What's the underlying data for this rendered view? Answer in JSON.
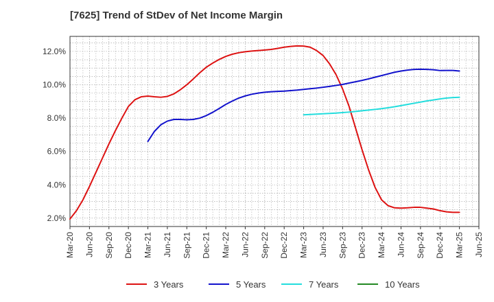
{
  "chart_data": {
    "type": "line",
    "title": "[7625]  Trend of StDev of Net Income Margin",
    "xlabel": "",
    "ylabel": "",
    "x_ticks": [
      "Mar-20",
      "Jun-20",
      "Sep-20",
      "Dec-20",
      "Mar-21",
      "Jun-21",
      "Sep-21",
      "Dec-21",
      "Mar-22",
      "Jun-22",
      "Sep-22",
      "Dec-22",
      "Mar-23",
      "Jun-23",
      "Sep-23",
      "Dec-23",
      "Mar-24",
      "Jun-24",
      "Sep-24",
      "Dec-24",
      "Mar-25",
      "Jun-25"
    ],
    "y_ticks": [
      "2.0%",
      "4.0%",
      "6.0%",
      "8.0%",
      "10.0%",
      "12.0%"
    ],
    "ylim": [
      1.5,
      12.9
    ],
    "grid": true,
    "legend_position": "bottom",
    "series": [
      {
        "name": "3 Years",
        "color": "#dd1111",
        "x": [
          "Mar-20",
          "Apr-20",
          "May-20",
          "Jun-20",
          "Jul-20",
          "Aug-20",
          "Sep-20",
          "Oct-20",
          "Nov-20",
          "Dec-20",
          "Jan-21",
          "Feb-21",
          "Mar-21",
          "Apr-21",
          "May-21",
          "Jun-21",
          "Jul-21",
          "Aug-21",
          "Sep-21",
          "Oct-21",
          "Nov-21",
          "Dec-21",
          "Jan-22",
          "Feb-22",
          "Mar-22",
          "Apr-22",
          "May-22",
          "Jun-22",
          "Jul-22",
          "Aug-22",
          "Sep-22",
          "Oct-22",
          "Nov-22",
          "Dec-22",
          "Jan-23",
          "Feb-23",
          "Mar-23",
          "Apr-23",
          "May-23",
          "Jun-23",
          "Jul-23",
          "Aug-23",
          "Sep-23",
          "Oct-23",
          "Nov-23",
          "Dec-23",
          "Jan-24",
          "Feb-24",
          "Mar-24",
          "Apr-24",
          "May-24",
          "Jun-24",
          "Jul-24",
          "Aug-24",
          "Sep-24",
          "Oct-24",
          "Nov-24",
          "Dec-24",
          "Jan-25",
          "Feb-25",
          "Mar-25"
        ],
        "values": [
          1.95,
          2.45,
          3.1,
          3.9,
          4.75,
          5.6,
          6.45,
          7.25,
          8.0,
          8.7,
          9.1,
          9.28,
          9.32,
          9.28,
          9.25,
          9.3,
          9.45,
          9.7,
          10.0,
          10.35,
          10.72,
          11.05,
          11.3,
          11.52,
          11.7,
          11.83,
          11.92,
          11.98,
          12.02,
          12.05,
          12.08,
          12.12,
          12.18,
          12.25,
          12.3,
          12.33,
          12.32,
          12.25,
          12.05,
          11.75,
          11.25,
          10.6,
          9.75,
          8.7,
          7.4,
          6.1,
          4.9,
          3.85,
          3.1,
          2.75,
          2.62,
          2.6,
          2.62,
          2.65,
          2.65,
          2.6,
          2.55,
          2.45,
          2.38,
          2.35,
          2.35
        ]
      },
      {
        "name": "5 Years",
        "color": "#1111cc",
        "x": [
          "Mar-21",
          "Apr-21",
          "May-21",
          "Jun-21",
          "Jul-21",
          "Aug-21",
          "Sep-21",
          "Oct-21",
          "Nov-21",
          "Dec-21",
          "Jan-22",
          "Feb-22",
          "Mar-22",
          "Apr-22",
          "May-22",
          "Jun-22",
          "Jul-22",
          "Aug-22",
          "Sep-22",
          "Oct-22",
          "Nov-22",
          "Dec-22",
          "Jan-23",
          "Feb-23",
          "Mar-23",
          "Apr-23",
          "May-23",
          "Jun-23",
          "Jul-23",
          "Aug-23",
          "Sep-23",
          "Oct-23",
          "Nov-23",
          "Dec-23",
          "Jan-24",
          "Feb-24",
          "Mar-24",
          "Apr-24",
          "May-24",
          "Jun-24",
          "Jul-24",
          "Aug-24",
          "Sep-24",
          "Oct-24",
          "Nov-24",
          "Dec-24",
          "Jan-25",
          "Feb-25",
          "Mar-25"
        ],
        "values": [
          6.6,
          7.2,
          7.6,
          7.82,
          7.92,
          7.92,
          7.9,
          7.92,
          8.0,
          8.15,
          8.35,
          8.58,
          8.82,
          9.02,
          9.2,
          9.33,
          9.43,
          9.5,
          9.55,
          9.58,
          9.6,
          9.62,
          9.65,
          9.68,
          9.72,
          9.76,
          9.8,
          9.85,
          9.9,
          9.96,
          10.02,
          10.1,
          10.18,
          10.26,
          10.35,
          10.45,
          10.55,
          10.65,
          10.75,
          10.82,
          10.88,
          10.92,
          10.93,
          10.92,
          10.9,
          10.85,
          10.86,
          10.86,
          10.82
        ]
      },
      {
        "name": "7 Years",
        "color": "#22dddd",
        "x": [
          "Mar-23",
          "Apr-23",
          "May-23",
          "Jun-23",
          "Jul-23",
          "Aug-23",
          "Sep-23",
          "Oct-23",
          "Nov-23",
          "Dec-23",
          "Jan-24",
          "Feb-24",
          "Mar-24",
          "Apr-24",
          "May-24",
          "Jun-24",
          "Jul-24",
          "Aug-24",
          "Sep-24",
          "Oct-24",
          "Nov-24",
          "Dec-24",
          "Jan-25",
          "Feb-25",
          "Mar-25"
        ],
        "values": [
          8.2,
          8.22,
          8.24,
          8.26,
          8.28,
          8.3,
          8.33,
          8.36,
          8.4,
          8.44,
          8.48,
          8.52,
          8.57,
          8.62,
          8.68,
          8.75,
          8.82,
          8.89,
          8.96,
          9.03,
          9.09,
          9.15,
          9.2,
          9.23,
          9.25
        ]
      },
      {
        "name": "10 Years",
        "color": "#228822",
        "x": [],
        "values": []
      }
    ]
  }
}
